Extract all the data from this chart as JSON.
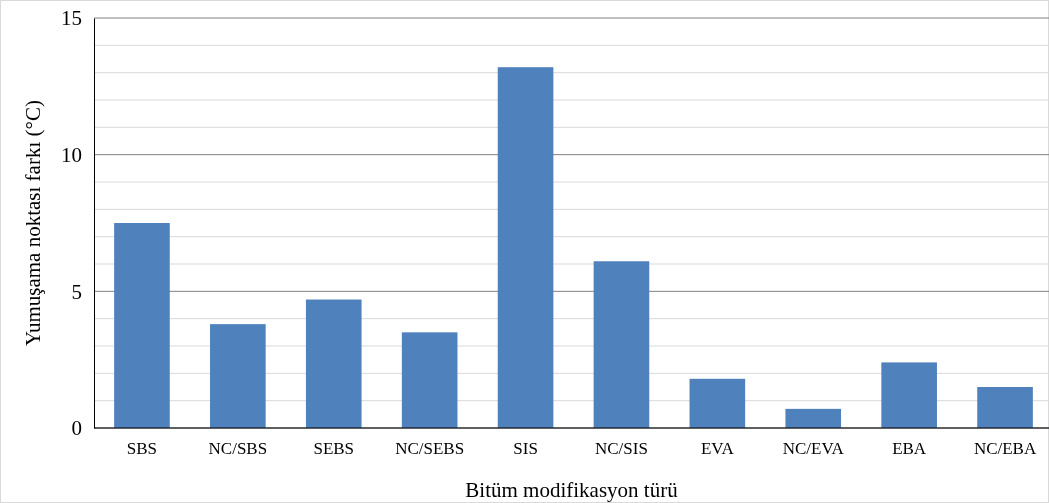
{
  "chart_data": {
    "type": "bar",
    "xlabel": "Bitüm modifikasyon türü",
    "ylabel": "Yumuşama noktası farkı (°C)",
    "categories": [
      "SBS",
      "NC/SBS",
      "SEBS",
      "NC/SEBS",
      "SIS",
      "NC/SIS",
      "EVA",
      "NC/EVA",
      "EBA",
      "NC/EBA"
    ],
    "values": [
      7.5,
      3.8,
      4.7,
      3.5,
      13.2,
      6.1,
      1.8,
      0.7,
      2.4,
      1.5
    ],
    "color": "#4f81bd",
    "ylim": [
      0,
      15
    ],
    "yticks": [
      0,
      {
        "value": 1,
        "label": null
      },
      {
        "value": 2,
        "label": null
      },
      {
        "value": 3,
        "label": null
      },
      {
        "value": 4,
        "label": null
      },
      5,
      {
        "value": 6,
        "label": null
      },
      {
        "value": 7,
        "label": null
      },
      {
        "value": 8,
        "label": null
      },
      {
        "value": 9,
        "label": null
      },
      10,
      {
        "value": 11,
        "label": null
      },
      {
        "value": 12,
        "label": null
      },
      {
        "value": 13,
        "label": null
      },
      {
        "value": 14,
        "label": null
      },
      15
    ],
    "grid": true
  }
}
